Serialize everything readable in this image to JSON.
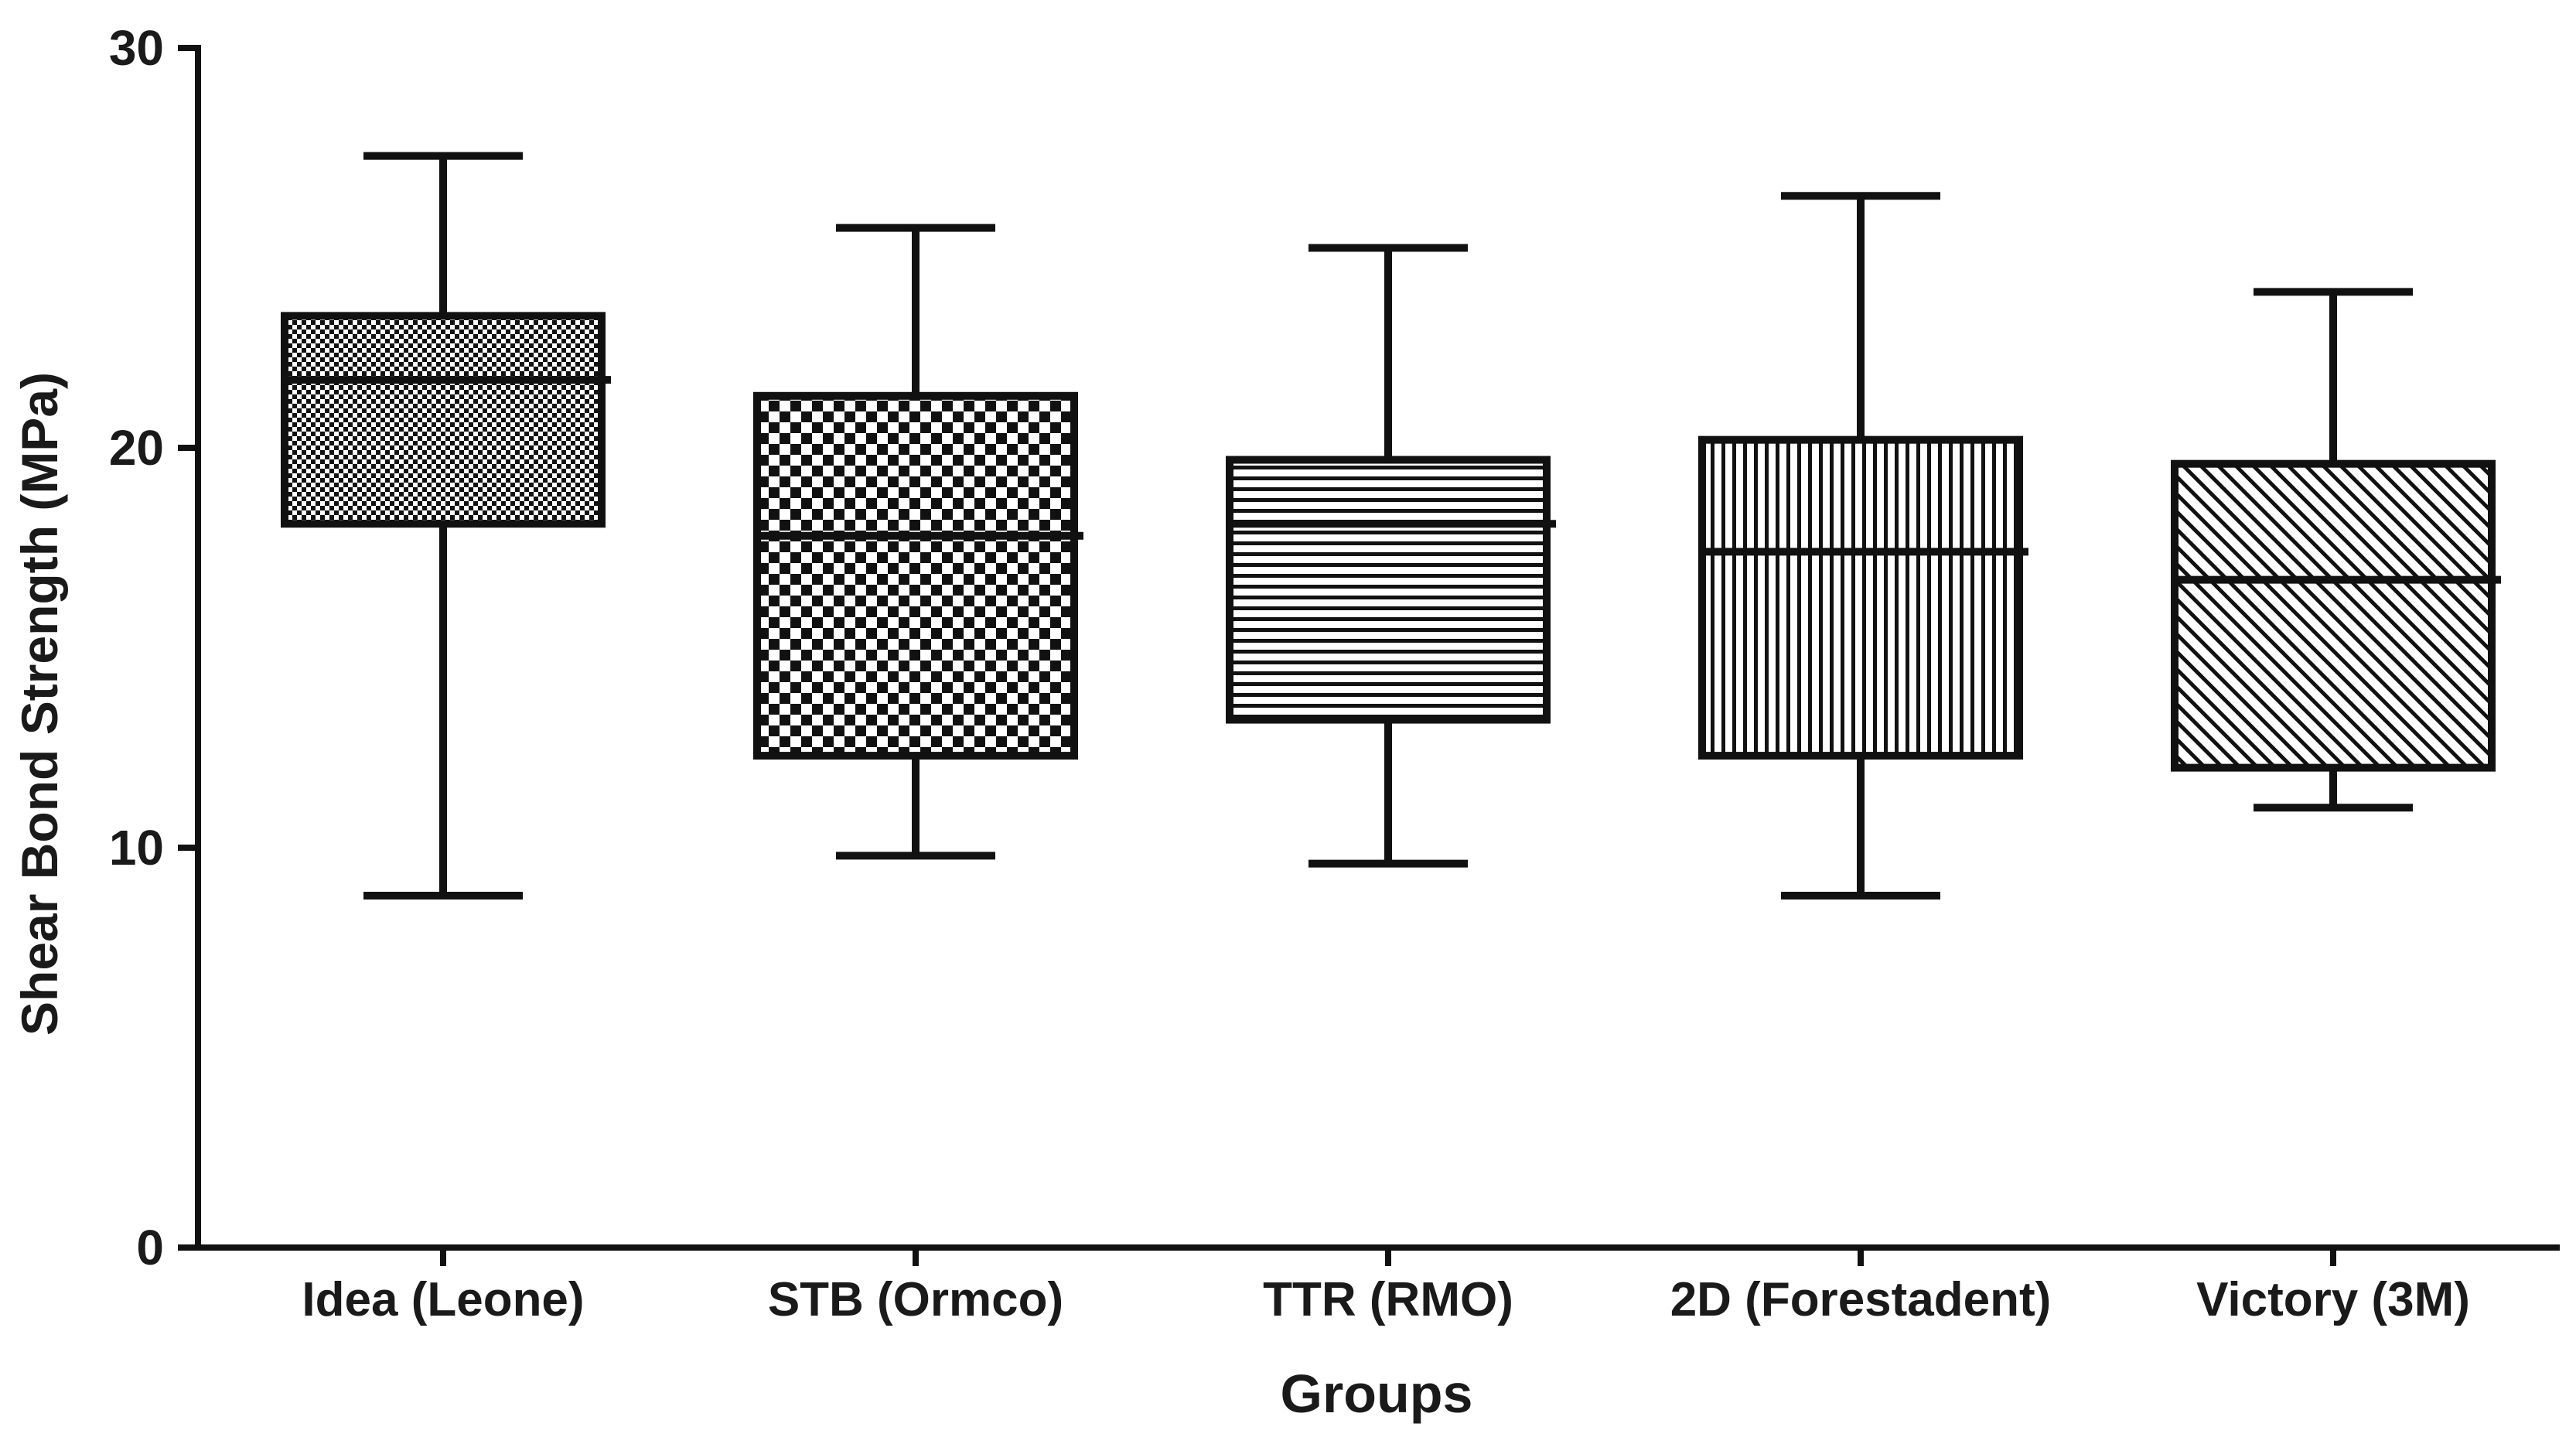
{
  "chart_data": {
    "type": "box",
    "title": "",
    "xlabel": "Groups",
    "ylabel": "Shear Bond Strength (MPa)",
    "ylim": [
      0,
      30
    ],
    "yticks": [
      0,
      10,
      20,
      30
    ],
    "ytick_labels": [
      "0",
      "10",
      "20",
      "30"
    ],
    "grid": false,
    "legend": "none",
    "categories": [
      "Idea (Leone)",
      "STB (Ormco)",
      "TTR (RMO)",
      "2D (Forestadent)",
      "Victory (3M)"
    ],
    "boxes": [
      {
        "category": "Idea (Leone)",
        "min": 8.8,
        "q1": 18.1,
        "median": 21.7,
        "q3": 23.3,
        "max": 27.3,
        "pattern": "fine-checker"
      },
      {
        "category": "STB (Ormco)",
        "min": 9.8,
        "q1": 12.3,
        "median": 17.8,
        "q3": 21.3,
        "max": 25.5,
        "pattern": "coarse-checker"
      },
      {
        "category": "TTR (RMO)",
        "min": 9.6,
        "q1": 13.2,
        "median": 18.1,
        "q3": 19.7,
        "max": 25.0,
        "pattern": "horizontal-lines"
      },
      {
        "category": "2D (Forestadent)",
        "min": 8.8,
        "q1": 12.3,
        "median": 17.4,
        "q3": 20.2,
        "max": 26.3,
        "pattern": "vertical-lines"
      },
      {
        "category": "Victory (3M)",
        "min": 11.0,
        "q1": 12.0,
        "median": 16.7,
        "q3": 19.6,
        "max": 23.9,
        "pattern": "diagonal-lines"
      }
    ],
    "colors": {
      "stroke": "#111111",
      "text": "#1a1a1a",
      "background": "#ffffff"
    }
  }
}
